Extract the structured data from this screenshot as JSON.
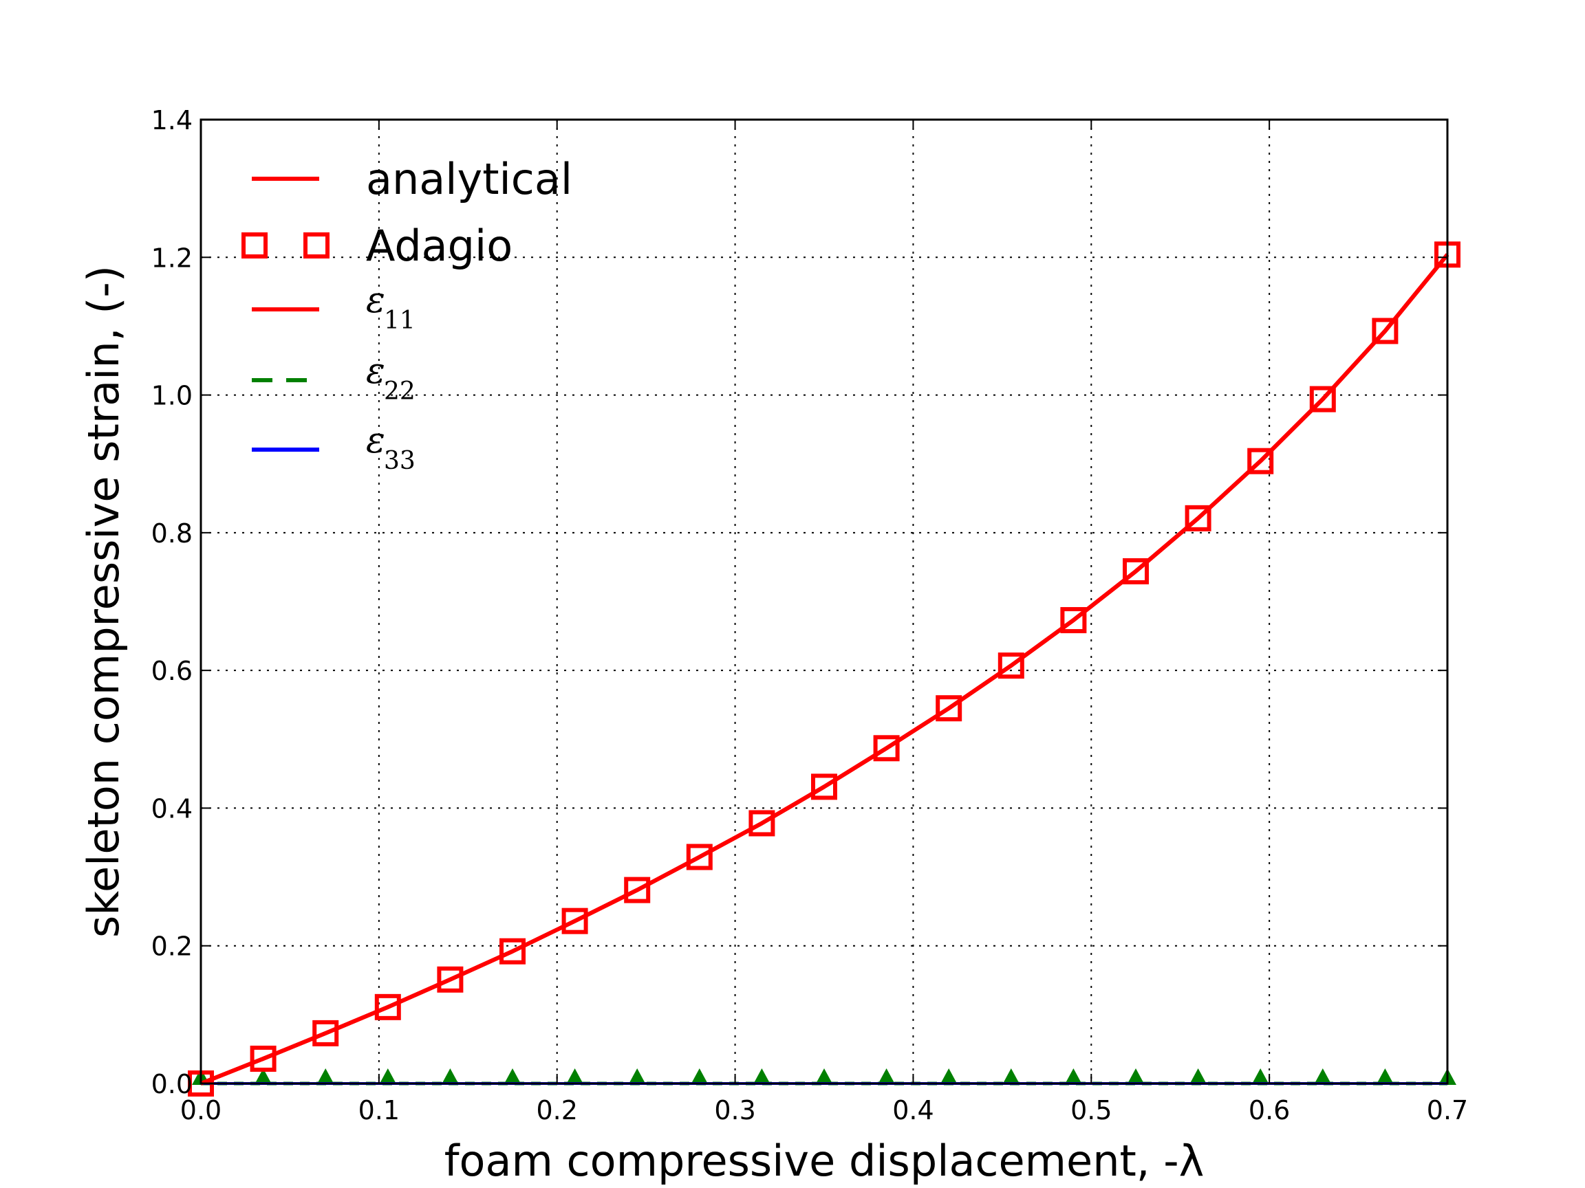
{
  "chart_data": {
    "type": "line",
    "title": "",
    "xlabel": "foam compressive displacement, -λ",
    "ylabel": "skeleton compressive strain, (-)",
    "xlim": [
      0.0,
      0.7
    ],
    "ylim": [
      0.0,
      1.4
    ],
    "xticks": [
      "0.0",
      "0.1",
      "0.2",
      "0.3",
      "0.4",
      "0.5",
      "0.6",
      "0.7"
    ],
    "yticks": [
      "0.0",
      "0.2",
      "0.4",
      "0.6",
      "0.8",
      "1.0",
      "1.2",
      "1.4"
    ],
    "grid": true,
    "legend_position": "upper-left",
    "series": [
      {
        "name": "analytical",
        "color": "#ff0000",
        "style": "solid",
        "x": [
          0.0,
          0.035,
          0.07,
          0.105,
          0.14,
          0.175,
          0.21,
          0.245,
          0.28,
          0.315,
          0.35,
          0.385,
          0.42,
          0.455,
          0.49,
          0.525,
          0.56,
          0.595,
          0.63,
          0.665,
          0.7
        ],
        "y": [
          0.0,
          0.036,
          0.073,
          0.111,
          0.151,
          0.192,
          0.236,
          0.281,
          0.329,
          0.378,
          0.431,
          0.487,
          0.545,
          0.607,
          0.673,
          0.744,
          0.821,
          0.904,
          0.994,
          1.093,
          1.204
        ]
      },
      {
        "name": "Adagio",
        "color": "#ff0000",
        "marker": "square",
        "x": [
          0.0,
          0.035,
          0.07,
          0.105,
          0.14,
          0.175,
          0.21,
          0.245,
          0.28,
          0.315,
          0.35,
          0.385,
          0.42,
          0.455,
          0.49,
          0.525,
          0.56,
          0.595,
          0.63,
          0.665,
          0.7
        ],
        "y": [
          0.0,
          0.036,
          0.073,
          0.111,
          0.151,
          0.192,
          0.236,
          0.281,
          0.329,
          0.378,
          0.431,
          0.487,
          0.545,
          0.607,
          0.673,
          0.744,
          0.821,
          0.904,
          0.994,
          1.093,
          1.204
        ]
      },
      {
        "name": "ε",
        "subscript": "11",
        "color": "#ff0000",
        "style": "solid",
        "x": [
          0.0,
          0.035,
          0.07,
          0.105,
          0.14,
          0.175,
          0.21,
          0.245,
          0.28,
          0.315,
          0.35,
          0.385,
          0.42,
          0.455,
          0.49,
          0.525,
          0.56,
          0.595,
          0.63,
          0.665,
          0.7
        ],
        "y": [
          0.0,
          0.036,
          0.073,
          0.111,
          0.151,
          0.192,
          0.236,
          0.281,
          0.329,
          0.378,
          0.431,
          0.487,
          0.545,
          0.607,
          0.673,
          0.744,
          0.821,
          0.904,
          0.994,
          1.093,
          1.204
        ]
      },
      {
        "name": "ε",
        "subscript": "22",
        "color": "#008000",
        "style": "dashed",
        "marker": "triangle",
        "x": [
          0.0,
          0.035,
          0.07,
          0.105,
          0.14,
          0.175,
          0.21,
          0.245,
          0.28,
          0.315,
          0.35,
          0.385,
          0.42,
          0.455,
          0.49,
          0.525,
          0.56,
          0.595,
          0.63,
          0.665,
          0.7
        ],
        "y": [
          0.0,
          0.0,
          0.0,
          0.0,
          0.0,
          0.0,
          0.0,
          0.0,
          0.0,
          0.0,
          0.0,
          0.0,
          0.0,
          0.0,
          0.0,
          0.0,
          0.0,
          0.0,
          0.0,
          0.0,
          0.0
        ]
      },
      {
        "name": "ε",
        "subscript": "33",
        "color": "#0000ff",
        "style": "solid",
        "x": [
          0.0,
          0.035,
          0.07,
          0.105,
          0.14,
          0.175,
          0.21,
          0.245,
          0.28,
          0.315,
          0.35,
          0.385,
          0.42,
          0.455,
          0.49,
          0.525,
          0.56,
          0.595,
          0.63,
          0.665,
          0.7
        ],
        "y": [
          0.0,
          0.0,
          0.0,
          0.0,
          0.0,
          0.0,
          0.0,
          0.0,
          0.0,
          0.0,
          0.0,
          0.0,
          0.0,
          0.0,
          0.0,
          0.0,
          0.0,
          0.0,
          0.0,
          0.0,
          0.0
        ]
      }
    ]
  }
}
